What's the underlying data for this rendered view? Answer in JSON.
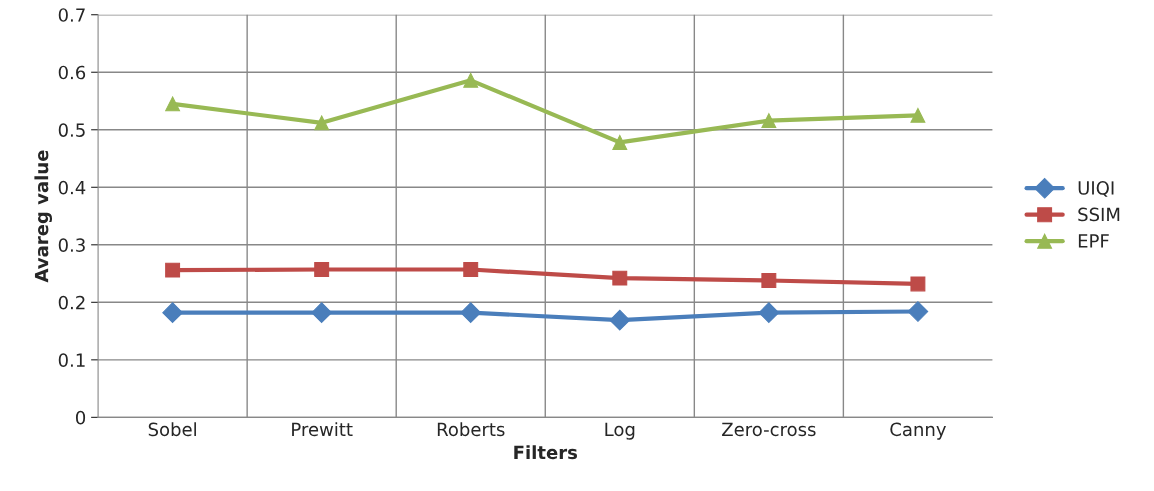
{
  "chart_data": {
    "type": "line",
    "xlabel": "Filters",
    "ylabel": "Avareg value",
    "categories": [
      "Sobel",
      "Prewitt",
      "Roberts",
      "Log",
      "Zero-cross",
      "Canny"
    ],
    "series": [
      {
        "name": "UIQI",
        "color": "#4a7ebb",
        "marker": "diamond",
        "values": [
          0.182,
          0.182,
          0.182,
          0.169,
          0.182,
          0.184
        ]
      },
      {
        "name": "SSIM",
        "color": "#be4b48",
        "marker": "square",
        "values": [
          0.256,
          0.257,
          0.257,
          0.242,
          0.238,
          0.232
        ]
      },
      {
        "name": "EPF",
        "color": "#98b954",
        "marker": "triangle",
        "values": [
          0.545,
          0.512,
          0.586,
          0.478,
          0.516,
          0.525
        ]
      }
    ],
    "ylim": [
      0,
      0.7
    ],
    "yticks": [
      0,
      0.1,
      0.2,
      0.3,
      0.4,
      0.5,
      0.6,
      0.7
    ],
    "grid": true,
    "legend": "right",
    "line_style": "solid"
  }
}
